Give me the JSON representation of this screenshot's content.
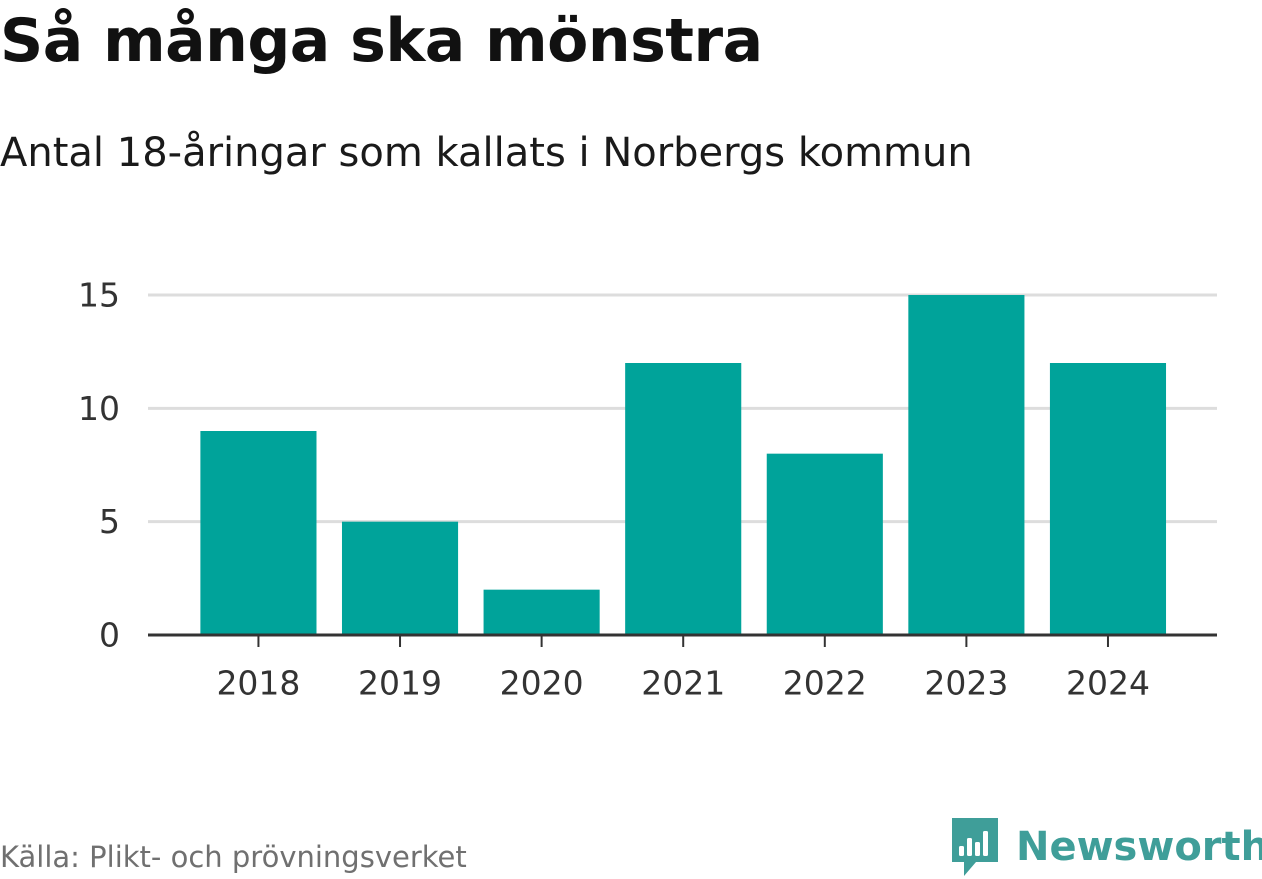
{
  "title": "Så många ska mönstra",
  "subtitle": "Antal 18-åringar som kallats i Norbergs kommun",
  "source": "Källa: Plikt- och prövningsverket",
  "brand": {
    "name": "Newsworthy",
    "icon": "newsworthy-logo-icon"
  },
  "colors": {
    "bar": "#00a39a",
    "grid": "#dddddd",
    "axis": "#333333",
    "text": "#333333",
    "brand": "#3f9e99"
  },
  "chart_data": {
    "type": "bar",
    "categories": [
      "2018",
      "2019",
      "2020",
      "2021",
      "2022",
      "2023",
      "2024"
    ],
    "values": [
      9,
      5,
      2,
      12,
      8,
      15,
      12
    ],
    "yticks": [
      0,
      5,
      10,
      15
    ],
    "ylim": [
      0,
      15
    ],
    "xlabel": "",
    "ylabel": "",
    "grid": true,
    "legend": "none"
  }
}
